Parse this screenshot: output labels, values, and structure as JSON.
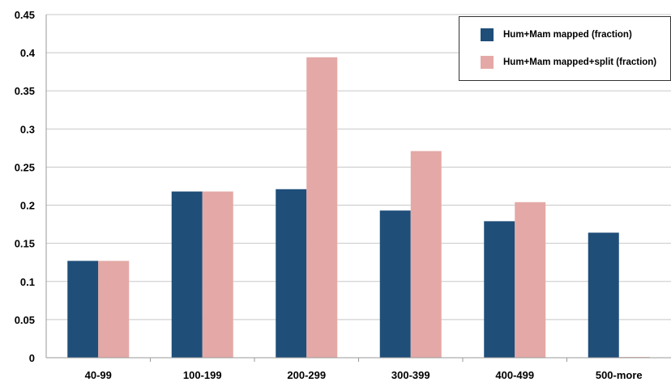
{
  "chart_data": {
    "type": "bar",
    "categories": [
      "40-99",
      "100-199",
      "200-299",
      "300-399",
      "400-499",
      "500-more"
    ],
    "series": [
      {
        "name": "Hum+Mam mapped (fraction)",
        "color": "#1f4e79",
        "values": [
          0.127,
          0.218,
          0.221,
          0.193,
          0.179,
          0.164
        ]
      },
      {
        "name": "Hum+Mam mapped+split (fraction)",
        "color": "#e4a9a6",
        "values": [
          0.127,
          0.218,
          0.394,
          0.271,
          0.204,
          0.001
        ]
      }
    ],
    "y_ticks": [
      "0",
      "0.05",
      "0.1",
      "0.15",
      "0.2",
      "0.25",
      "0.3",
      "0.35",
      "0.4",
      "0.45"
    ],
    "ylim": [
      0,
      0.45
    ],
    "grid": "horizontal",
    "legend_position": "top-right",
    "title": "",
    "xlabel": "",
    "ylabel": ""
  }
}
